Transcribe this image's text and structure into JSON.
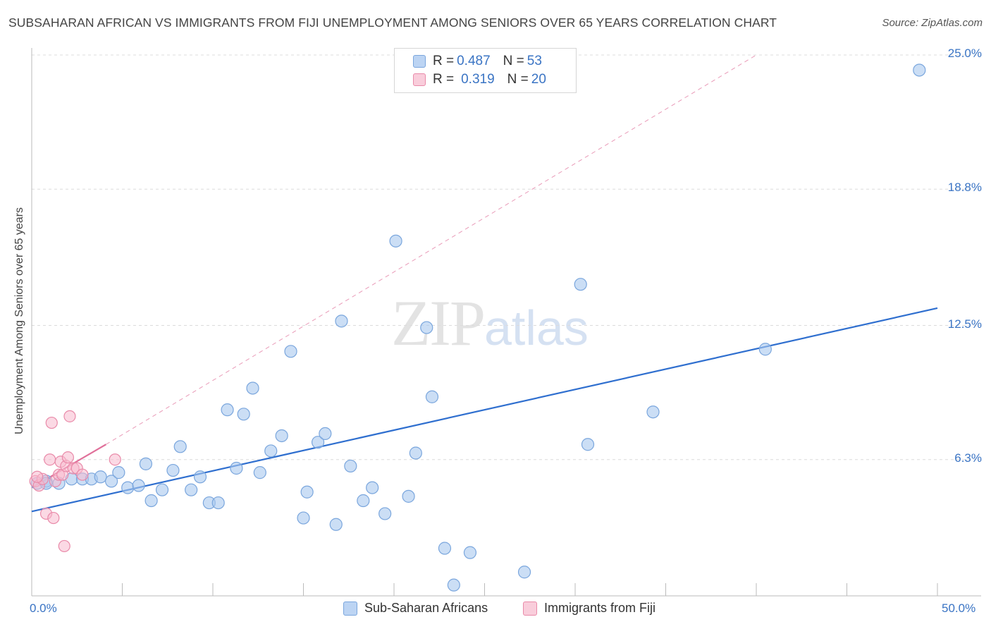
{
  "title": "SUBSAHARAN AFRICAN VS IMMIGRANTS FROM FIJI UNEMPLOYMENT AMONG SENIORS OVER 65 YEARS CORRELATION CHART",
  "source": "Source: ZipAtlas.com",
  "watermark": {
    "zip": "ZIP",
    "atlas": "atlas"
  },
  "colors": {
    "blue": "#a9c8ef",
    "blue_stroke": "#7aa6dd",
    "blue_line": "#2f6fcf",
    "pink": "#f7b9cd",
    "pink_stroke": "#e98aa9",
    "pink_line": "#e0709a",
    "axis_text": "#3a74c4"
  },
  "legend": {
    "rows": [
      {
        "r_label": "R = ",
        "r_value": "0.487",
        "n_label": "N = ",
        "n_value": "53"
      },
      {
        "r_label": "R = ",
        "r_value": "0.319",
        "n_label": "N = ",
        "n_value": "20"
      }
    ]
  },
  "chart_data": {
    "type": "scatter",
    "title": "SUBSAHARAN AFRICAN VS IMMIGRANTS FROM FIJI UNEMPLOYMENT AMONG SENIORS OVER 65 YEARS CORRELATION CHART",
    "xlabel": "",
    "ylabel": "Unemployment Among Seniors over 65 years",
    "xlim": [
      0,
      50
    ],
    "ylim": [
      0,
      25
    ],
    "x_tick_labels": [
      "0.0%",
      "50.0%"
    ],
    "y_ticks": [
      6.3,
      12.5,
      18.8,
      25.0
    ],
    "y_tick_labels": [
      "6.3%",
      "12.5%",
      "18.8%",
      "25.0%"
    ],
    "grid": true,
    "legend_position": "top-center",
    "series": [
      {
        "name": "Sub-Saharan Africans",
        "color": "#a9c8ef",
        "points": [
          [
            0.3,
            5.2
          ],
          [
            0.8,
            5.3
          ],
          [
            1.5,
            5.2
          ],
          [
            2.2,
            5.4
          ],
          [
            2.8,
            5.4
          ],
          [
            3.3,
            5.4
          ],
          [
            3.8,
            5.5
          ],
          [
            4.4,
            5.3
          ],
          [
            4.8,
            5.7
          ],
          [
            5.3,
            5.0
          ],
          [
            5.9,
            5.1
          ],
          [
            6.3,
            6.1
          ],
          [
            6.6,
            4.4
          ],
          [
            7.2,
            4.9
          ],
          [
            7.8,
            5.8
          ],
          [
            8.2,
            6.9
          ],
          [
            8.8,
            4.9
          ],
          [
            9.3,
            5.5
          ],
          [
            9.8,
            4.3
          ],
          [
            10.3,
            4.3
          ],
          [
            10.8,
            8.6
          ],
          [
            11.3,
            5.9
          ],
          [
            11.7,
            8.4
          ],
          [
            12.2,
            9.6
          ],
          [
            12.6,
            5.7
          ],
          [
            13.2,
            6.7
          ],
          [
            13.8,
            7.4
          ],
          [
            14.3,
            11.3
          ],
          [
            15.0,
            3.6
          ],
          [
            15.2,
            4.8
          ],
          [
            15.8,
            7.1
          ],
          [
            16.2,
            7.5
          ],
          [
            16.8,
            3.3
          ],
          [
            17.1,
            12.7
          ],
          [
            17.6,
            6.0
          ],
          [
            18.3,
            4.4
          ],
          [
            18.8,
            5.0
          ],
          [
            19.5,
            3.8
          ],
          [
            20.1,
            16.4
          ],
          [
            20.8,
            4.6
          ],
          [
            21.2,
            6.6
          ],
          [
            21.8,
            12.4
          ],
          [
            22.1,
            9.2
          ],
          [
            22.8,
            2.2
          ],
          [
            23.3,
            0.5
          ],
          [
            24.2,
            2.0
          ],
          [
            27.2,
            1.1
          ],
          [
            30.3,
            14.4
          ],
          [
            30.7,
            7.0
          ],
          [
            34.3,
            8.5
          ],
          [
            40.5,
            11.4
          ],
          [
            49.0,
            24.3
          ],
          [
            0.8,
            5.2
          ]
        ]
      },
      {
        "name": "Immigrants from Fiji",
        "color": "#f7b9cd",
        "points": [
          [
            0.2,
            5.3
          ],
          [
            0.4,
            5.1
          ],
          [
            0.6,
            5.4
          ],
          [
            0.8,
            3.8
          ],
          [
            1.0,
            6.3
          ],
          [
            1.1,
            8.0
          ],
          [
            1.2,
            3.6
          ],
          [
            1.3,
            5.3
          ],
          [
            1.5,
            5.6
          ],
          [
            1.6,
            6.2
          ],
          [
            1.7,
            5.6
          ],
          [
            1.8,
            2.3
          ],
          [
            1.9,
            6.0
          ],
          [
            2.0,
            6.4
          ],
          [
            2.1,
            8.3
          ],
          [
            2.3,
            5.9
          ],
          [
            2.5,
            5.9
          ],
          [
            2.8,
            5.6
          ],
          [
            4.6,
            6.3
          ],
          [
            0.3,
            5.5
          ]
        ]
      }
    ],
    "trendlines": [
      {
        "series": "Sub-Saharan Africans",
        "style": "solid",
        "from": [
          0,
          3.9
        ],
        "to": [
          50,
          13.3
        ]
      },
      {
        "series": "Immigrants from Fiji",
        "style": "solid",
        "from": [
          0,
          5.0
        ],
        "to": [
          4.1,
          7.0
        ]
      },
      {
        "series": "Immigrants from Fiji",
        "style": "dashed",
        "from": [
          4.1,
          7.0
        ],
        "to": [
          40,
          25.0
        ]
      }
    ]
  }
}
